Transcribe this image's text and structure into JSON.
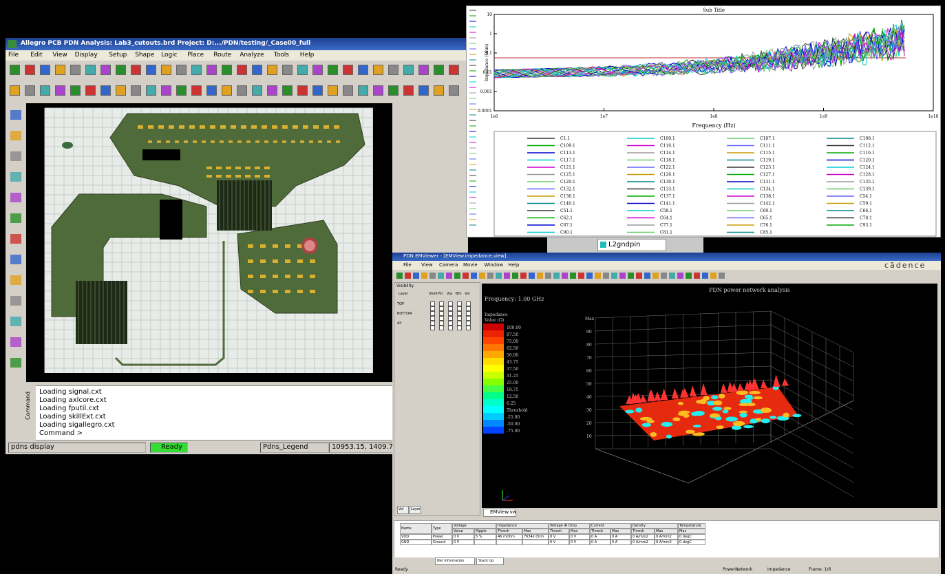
{
  "allegro": {
    "title": "Allegro PCB PDN Analysis: Lab3_cutouts.brd  Project: D:.../PDN/testing/_Case00_full",
    "menu": [
      "File",
      "Edit",
      "View",
      "Display",
      "Setup",
      "Shape",
      "Logic",
      "Place",
      "Route",
      "Analyze",
      "Tools",
      "Help"
    ],
    "console": [
      "Loading signal.cxt",
      "Loading axlcore.cxt",
      "Loading fputil.cxt",
      "Loading skillExt.cxt",
      "Loading sigallegro.cxt",
      "Command >"
    ],
    "console_tab": "Command",
    "status": [
      "pdns display",
      "Ready",
      "Pdns_Legend",
      "10953.15, 1409.7"
    ]
  },
  "plot": {
    "title": "Sub Title",
    "y_label": "Impedance (Ohm)",
    "x_label": "Frequency (Hz)",
    "x_ticks": [
      "1e6",
      "1e7",
      "1e8",
      "1e9",
      "1e10"
    ],
    "y_ticks": [
      "10",
      "1",
      "0.1",
      "0.01",
      "0.001",
      "0.0001"
    ],
    "legend": [
      [
        "C1.1",
        "C109.1",
        "C113.1",
        "C117.1",
        "C121.1",
        "C125.1",
        "C129.1",
        "C132.1",
        "C136.1",
        "C140.1",
        "C51.1",
        "C62.1",
        "C67.1",
        "C90.1"
      ],
      [
        "C100.1",
        "C110.1",
        "C114.1",
        "C118.1",
        "C122.1",
        "C126.1",
        "C130.1",
        "C133.1",
        "C137.1",
        "C141.1",
        "C58.1",
        "C64.1",
        "C77.1",
        "C81.1"
      ],
      [
        "C107.1",
        "C111.1",
        "C115.1",
        "C119.1",
        "C123.1",
        "C127.1",
        "C131.1",
        "C134.1",
        "C138.1",
        "C142.1",
        "C60.1",
        "C65.1",
        "C76.1",
        "C85.1"
      ],
      [
        "C108.1",
        "C112.1",
        "C116.1",
        "C120.1",
        "C124.1",
        "C128.1",
        "C135.1",
        "C139.1",
        "C54.1",
        "C59.1",
        "C66.1",
        "C78.1",
        "C93.1"
      ]
    ]
  },
  "tab": "L2gndpin",
  "viewer": {
    "title": "PDN EMViewer - [EMView.impedance.view]",
    "menu": [
      "File",
      "View",
      "Camera",
      "Movie",
      "Window",
      "Help"
    ],
    "brand": "cādence",
    "panel_title": "Visibility",
    "layer_headers": [
      "Layer",
      "Shell",
      "Pin",
      "Via",
      "Bth",
      "Vol"
    ],
    "layers": [
      "TOP",
      "BOTTOM",
      "All"
    ],
    "panel_tabs": [
      "Vol",
      "Layer"
    ],
    "view_title": "PDN power network analysis",
    "frequency": "Frequency: 1.00 GHz",
    "legend_title": "Impedance",
    "legend_unit": "Value (Ω)",
    "legend_values": [
      "100.00",
      "87.50",
      "75.00",
      "62.50",
      "50.00",
      "43.75",
      "37.50",
      "31.25",
      "25.00",
      "18.75",
      "12.50",
      "6.25",
      "Threshold",
      "-25.00",
      "-50.00",
      "-75.00"
    ],
    "z_label": "Max",
    "z_ticks": [
      "90",
      "80",
      "70",
      "60",
      "50",
      "40",
      "30",
      "20",
      "10"
    ],
    "view_tab": "EMView.vw",
    "table": {
      "groups": [
        "Name",
        "Type",
        "Voltage",
        "Impedance",
        "Voltage IR Drop",
        "Current",
        "Density",
        "Temperature"
      ],
      "subheaders": [
        "Value",
        "Ripple",
        "Thresh",
        "Max",
        "Thresh",
        "Max",
        "Thresh",
        "Max",
        "Thresh",
        "Max",
        "Max"
      ],
      "rows": [
        [
          "VDD",
          "Power",
          "0 V",
          "5 %",
          "46 mOhm",
          "7634k Ohm",
          "0 V",
          "0 V",
          "0 A",
          "0 A",
          "0 A/mm2",
          "0 A/mm2",
          "0 degC"
        ],
        [
          "GND",
          "Ground",
          "0 V",
          "",
          "",
          "",
          "0 V",
          "0 V",
          "0 A",
          "0 A",
          "0 A/mm2",
          "0 A/mm2",
          "0 degC"
        ]
      ]
    },
    "bottom_tabs": [
      "Net Information",
      "Stack Up"
    ],
    "status": [
      "Ready",
      "PowerNetwork",
      "Impedance",
      "Frame: 1/6"
    ]
  }
}
